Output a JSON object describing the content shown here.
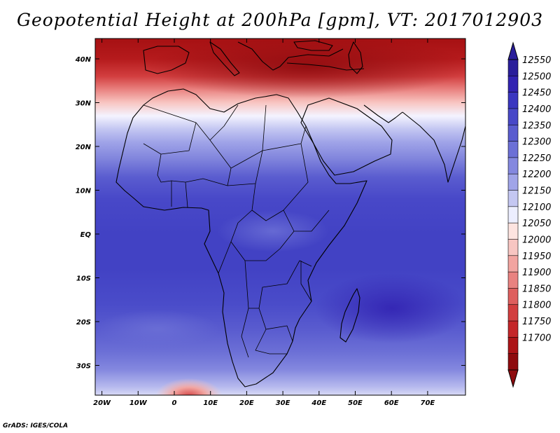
{
  "title": "Geopotential Height at 200hPa [gpm], VT: 2017012903",
  "credit": "GrADS: IGES/COLA",
  "axes": {
    "lat_ticks": [
      {
        "label": "40N",
        "value": 40
      },
      {
        "label": "30N",
        "value": 30
      },
      {
        "label": "20N",
        "value": 20
      },
      {
        "label": "10N",
        "value": 10
      },
      {
        "label": "EQ",
        "value": 0
      },
      {
        "label": "10S",
        "value": -10
      },
      {
        "label": "20S",
        "value": -20
      },
      {
        "label": "30S",
        "value": -30
      }
    ],
    "lon_ticks": [
      {
        "label": "20W",
        "value": -20
      },
      {
        "label": "10W",
        "value": -10
      },
      {
        "label": "0",
        "value": 0
      },
      {
        "label": "10E",
        "value": 10
      },
      {
        "label": "20E",
        "value": 20
      },
      {
        "label": "30E",
        "value": 30
      },
      {
        "label": "40E",
        "value": 40
      },
      {
        "label": "50E",
        "value": 50
      },
      {
        "label": "60E",
        "value": 60
      },
      {
        "label": "70E",
        "value": 70
      }
    ]
  },
  "colorbar": {
    "labels": [
      "12550",
      "12500",
      "12450",
      "12400",
      "12350",
      "12300",
      "12250",
      "12200",
      "12150",
      "12100",
      "12050",
      "12000",
      "11950",
      "11900",
      "11850",
      "11800",
      "11750",
      "11700"
    ],
    "colors": [
      "#2a1e9b",
      "#3223b2",
      "#3a36c0",
      "#4848c8",
      "#5a5ccf",
      "#6c70d6",
      "#8488df",
      "#a0a4e8",
      "#c4c7f2",
      "#eceeff",
      "#fde4e0",
      "#f8c6c2",
      "#f2a4a0",
      "#e98280",
      "#de5f5e",
      "#d23e3f",
      "#c42629",
      "#ac1417",
      "#8e0b0e"
    ],
    "arrow_top_color": "#2a1e9b",
    "arrow_bottom_color": "#8e0b0e"
  },
  "field": {
    "bands": [
      {
        "lat": 44,
        "value": 11710,
        "color": "#a81214"
      },
      {
        "lat": 40,
        "value": 11740,
        "color": "#b51a1c"
      },
      {
        "lat": 36,
        "value": 11850,
        "color": "#d23e3f"
      },
      {
        "lat": 33,
        "value": 11950,
        "color": "#e98280"
      },
      {
        "lat": 30,
        "value": 12050,
        "color": "#f8c6c2"
      },
      {
        "lat": 27,
        "value": 12120,
        "color": "#f4f3ff"
      },
      {
        "lat": 24,
        "value": 12200,
        "color": "#c4c7f2"
      },
      {
        "lat": 21,
        "value": 12260,
        "color": "#a0a4e8"
      },
      {
        "lat": 17,
        "value": 12320,
        "color": "#7f83dc"
      },
      {
        "lat": 13,
        "value": 12370,
        "color": "#5a5ccf"
      },
      {
        "lat": 8,
        "value": 12420,
        "color": "#4848c8"
      },
      {
        "lat": 0,
        "value": 12440,
        "color": "#4242c4"
      },
      {
        "lat": -8,
        "value": 12440,
        "color": "#4242c4"
      },
      {
        "lat": -16,
        "value": 12410,
        "color": "#4a4cc9"
      },
      {
        "lat": -22,
        "value": 12370,
        "color": "#5a5ccf"
      },
      {
        "lat": -27,
        "value": 12330,
        "color": "#6c70d6"
      },
      {
        "lat": -31,
        "value": 12280,
        "color": "#8488df"
      },
      {
        "lat": -35,
        "value": 12200,
        "color": "#b8bbee"
      },
      {
        "lat": -37,
        "value": 12140,
        "color": "#d8daf6"
      }
    ]
  }
}
